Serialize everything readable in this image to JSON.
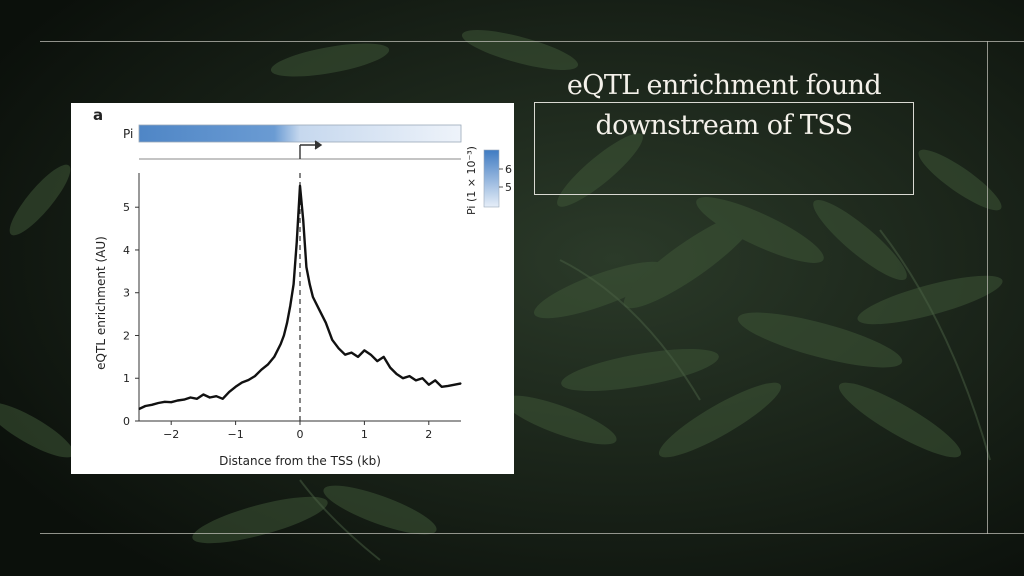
{
  "slide": {
    "title": "eQTL enrichment found downstream of TSS"
  },
  "chart_data": {
    "type": "line",
    "panel_label": "a",
    "pi_track_label": "Pi",
    "colorbar_label": "Pi (1 × 10⁻³)",
    "colorbar_ticks": [
      "6",
      "5"
    ],
    "xlabel": "Distance from the TSS (kb)",
    "ylabel": "eQTL enrichment (AU)",
    "xlim": [
      -2.5,
      2.5
    ],
    "ylim": [
      0,
      5.8
    ],
    "x_ticks": [
      -2,
      -1,
      0,
      1,
      2
    ],
    "y_ticks": [
      0,
      1,
      2,
      3,
      4,
      5
    ],
    "tss_marker": 0,
    "series": [
      {
        "x": [
          -2.5,
          -2.4,
          -2.3,
          -2.2,
          -2.1,
          -2.0,
          -1.9,
          -1.8,
          -1.7,
          -1.6,
          -1.5,
          -1.4,
          -1.3,
          -1.2,
          -1.1,
          -1.0,
          -0.9,
          -0.8,
          -0.7,
          -0.6,
          -0.5,
          -0.4,
          -0.3,
          -0.25,
          -0.2,
          -0.15,
          -0.1,
          -0.05,
          0.0,
          0.05,
          0.1,
          0.15,
          0.2,
          0.3,
          0.4,
          0.5,
          0.6,
          0.7,
          0.8,
          0.9,
          1.0,
          1.1,
          1.2,
          1.3,
          1.4,
          1.5,
          1.6,
          1.7,
          1.8,
          1.9,
          2.0,
          2.1,
          2.2,
          2.3,
          2.4,
          2.5
        ],
        "y": [
          0.28,
          0.35,
          0.38,
          0.42,
          0.45,
          0.44,
          0.48,
          0.5,
          0.55,
          0.52,
          0.62,
          0.55,
          0.58,
          0.52,
          0.68,
          0.8,
          0.9,
          0.96,
          1.05,
          1.2,
          1.32,
          1.5,
          1.8,
          2.0,
          2.3,
          2.7,
          3.2,
          4.2,
          5.5,
          4.7,
          3.6,
          3.2,
          2.9,
          2.6,
          2.3,
          1.9,
          1.7,
          1.55,
          1.6,
          1.5,
          1.65,
          1.55,
          1.4,
          1.5,
          1.25,
          1.1,
          1.0,
          1.05,
          0.95,
          1.0,
          0.85,
          0.95,
          0.8,
          0.82,
          0.85,
          0.88
        ]
      }
    ]
  }
}
